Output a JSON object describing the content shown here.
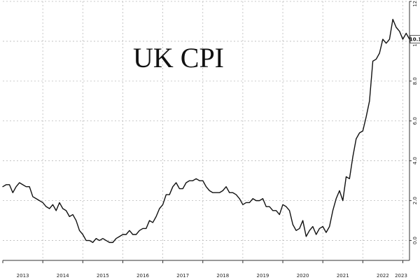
{
  "chart_data": {
    "type": "line",
    "title": "UK CPI",
    "xlabel": "",
    "ylabel": "",
    "x_ticks": [
      "2013",
      "2014",
      "2015",
      "2016",
      "2017",
      "2018",
      "2019",
      "2020",
      "2021",
      "2022",
      "2023"
    ],
    "y_ticks": [
      "0.0",
      "2.0",
      "4.0",
      "6.0",
      "8.0",
      "10.0",
      "12.0"
    ],
    "ylim": [
      -1.0,
      12.0
    ],
    "xlim": [
      "2013-01",
      "2023-03"
    ],
    "grid": true,
    "y_axis_position": "right",
    "last_value_label": "10.1",
    "series": [
      {
        "x": [
          "2013-01",
          "2013-02",
          "2013-03",
          "2013-04",
          "2013-05",
          "2013-06",
          "2013-07",
          "2013-08",
          "2013-09",
          "2013-10",
          "2013-11",
          "2013-12",
          "2014-01",
          "2014-02",
          "2014-03",
          "2014-04",
          "2014-05",
          "2014-06",
          "2014-07",
          "2014-08",
          "2014-09",
          "2014-10",
          "2014-11",
          "2014-12",
          "2015-01",
          "2015-02",
          "2015-03",
          "2015-04",
          "2015-05",
          "2015-06",
          "2015-07",
          "2015-08",
          "2015-09",
          "2015-10",
          "2015-11",
          "2015-12",
          "2016-01",
          "2016-02",
          "2016-03",
          "2016-04",
          "2016-05",
          "2016-06",
          "2016-07",
          "2016-08",
          "2016-09",
          "2016-10",
          "2016-11",
          "2016-12",
          "2017-01",
          "2017-02",
          "2017-03",
          "2017-04",
          "2017-05",
          "2017-06",
          "2017-07",
          "2017-08",
          "2017-09",
          "2017-10",
          "2017-11",
          "2017-12",
          "2018-01",
          "2018-02",
          "2018-03",
          "2018-04",
          "2018-05",
          "2018-06",
          "2018-07",
          "2018-08",
          "2018-09",
          "2018-10",
          "2018-11",
          "2018-12",
          "2019-01",
          "2019-02",
          "2019-03",
          "2019-04",
          "2019-05",
          "2019-06",
          "2019-07",
          "2019-08",
          "2019-09",
          "2019-10",
          "2019-11",
          "2019-12",
          "2020-01",
          "2020-02",
          "2020-03",
          "2020-04",
          "2020-05",
          "2020-06",
          "2020-07",
          "2020-08",
          "2020-09",
          "2020-10",
          "2020-11",
          "2020-12",
          "2021-01",
          "2021-02",
          "2021-03",
          "2021-04",
          "2021-05",
          "2021-06",
          "2021-07",
          "2021-08",
          "2021-09",
          "2021-10",
          "2021-11",
          "2021-12",
          "2022-01",
          "2022-02",
          "2022-03",
          "2022-04",
          "2022-05",
          "2022-06",
          "2022-07",
          "2022-08",
          "2022-09",
          "2022-10",
          "2022-11",
          "2022-12",
          "2023-01",
          "2023-02",
          "2023-03"
        ],
        "values": [
          2.7,
          2.8,
          2.8,
          2.4,
          2.7,
          2.9,
          2.8,
          2.7,
          2.7,
          2.2,
          2.1,
          2.0,
          1.9,
          1.7,
          1.6,
          1.8,
          1.5,
          1.9,
          1.6,
          1.5,
          1.2,
          1.3,
          1.0,
          0.5,
          0.3,
          0.0,
          0.0,
          -0.1,
          0.1,
          0.0,
          0.1,
          0.0,
          -0.1,
          -0.1,
          0.1,
          0.2,
          0.3,
          0.3,
          0.5,
          0.3,
          0.3,
          0.5,
          0.6,
          0.6,
          1.0,
          0.9,
          1.2,
          1.6,
          1.8,
          2.3,
          2.3,
          2.7,
          2.9,
          2.6,
          2.6,
          2.9,
          3.0,
          3.0,
          3.1,
          3.0,
          3.0,
          2.7,
          2.5,
          2.4,
          2.4,
          2.4,
          2.5,
          2.7,
          2.4,
          2.4,
          2.3,
          2.1,
          1.8,
          1.9,
          1.9,
          2.1,
          2.0,
          2.0,
          2.1,
          1.7,
          1.7,
          1.5,
          1.5,
          1.3,
          1.8,
          1.7,
          1.5,
          0.8,
          0.5,
          0.6,
          1.0,
          0.2,
          0.5,
          0.7,
          0.3,
          0.6,
          0.7,
          0.4,
          0.7,
          1.5,
          2.1,
          2.5,
          2.0,
          3.2,
          3.1,
          4.2,
          5.1,
          5.4,
          5.5,
          6.2,
          7.0,
          9.0,
          9.1,
          9.4,
          10.1,
          9.9,
          10.1,
          11.1,
          10.7,
          10.5,
          10.1,
          10.4,
          10.1
        ]
      }
    ]
  }
}
